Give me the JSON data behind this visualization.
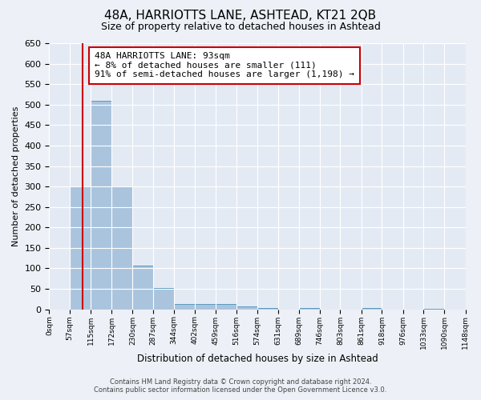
{
  "title": "48A, HARRIOTTS LANE, ASHTEAD, KT21 2QB",
  "subtitle": "Size of property relative to detached houses in Ashtead",
  "xlabel": "Distribution of detached houses by size in Ashtead",
  "ylabel": "Number of detached properties",
  "bar_edges": [
    0,
    57,
    115,
    172,
    230,
    287,
    344,
    402,
    459,
    516,
    574,
    631,
    689,
    746,
    803,
    861,
    918,
    976,
    1033,
    1090,
    1148
  ],
  "bar_heights": [
    0,
    300,
    510,
    300,
    107,
    53,
    13,
    14,
    13,
    7,
    4,
    0,
    3,
    0,
    0,
    3,
    0,
    0,
    2,
    0
  ],
  "bar_color": "#aac4de",
  "bar_edge_color": "#5a9abe",
  "property_line_x": 93,
  "property_line_color": "#cc0000",
  "annotation_text": "48A HARRIOTTS LANE: 93sqm\n← 8% of detached houses are smaller (111)\n91% of semi-detached houses are larger (1,198) →",
  "annotation_box_color": "#ffffff",
  "annotation_box_edge_color": "#cc0000",
  "ylim": [
    0,
    650
  ],
  "tick_labels": [
    "0sqm",
    "57sqm",
    "115sqm",
    "172sqm",
    "230sqm",
    "287sqm",
    "344sqm",
    "402sqm",
    "459sqm",
    "516sqm",
    "574sqm",
    "631sqm",
    "689sqm",
    "746sqm",
    "803sqm",
    "861sqm",
    "918sqm",
    "976sqm",
    "1033sqm",
    "1090sqm",
    "1148sqm"
  ],
  "footer_line1": "Contains HM Land Registry data © Crown copyright and database right 2024.",
  "footer_line2": "Contains public sector information licensed under the Open Government Licence v3.0.",
  "bg_color": "#edf1f7",
  "plot_bg_color": "#e4eaf4"
}
